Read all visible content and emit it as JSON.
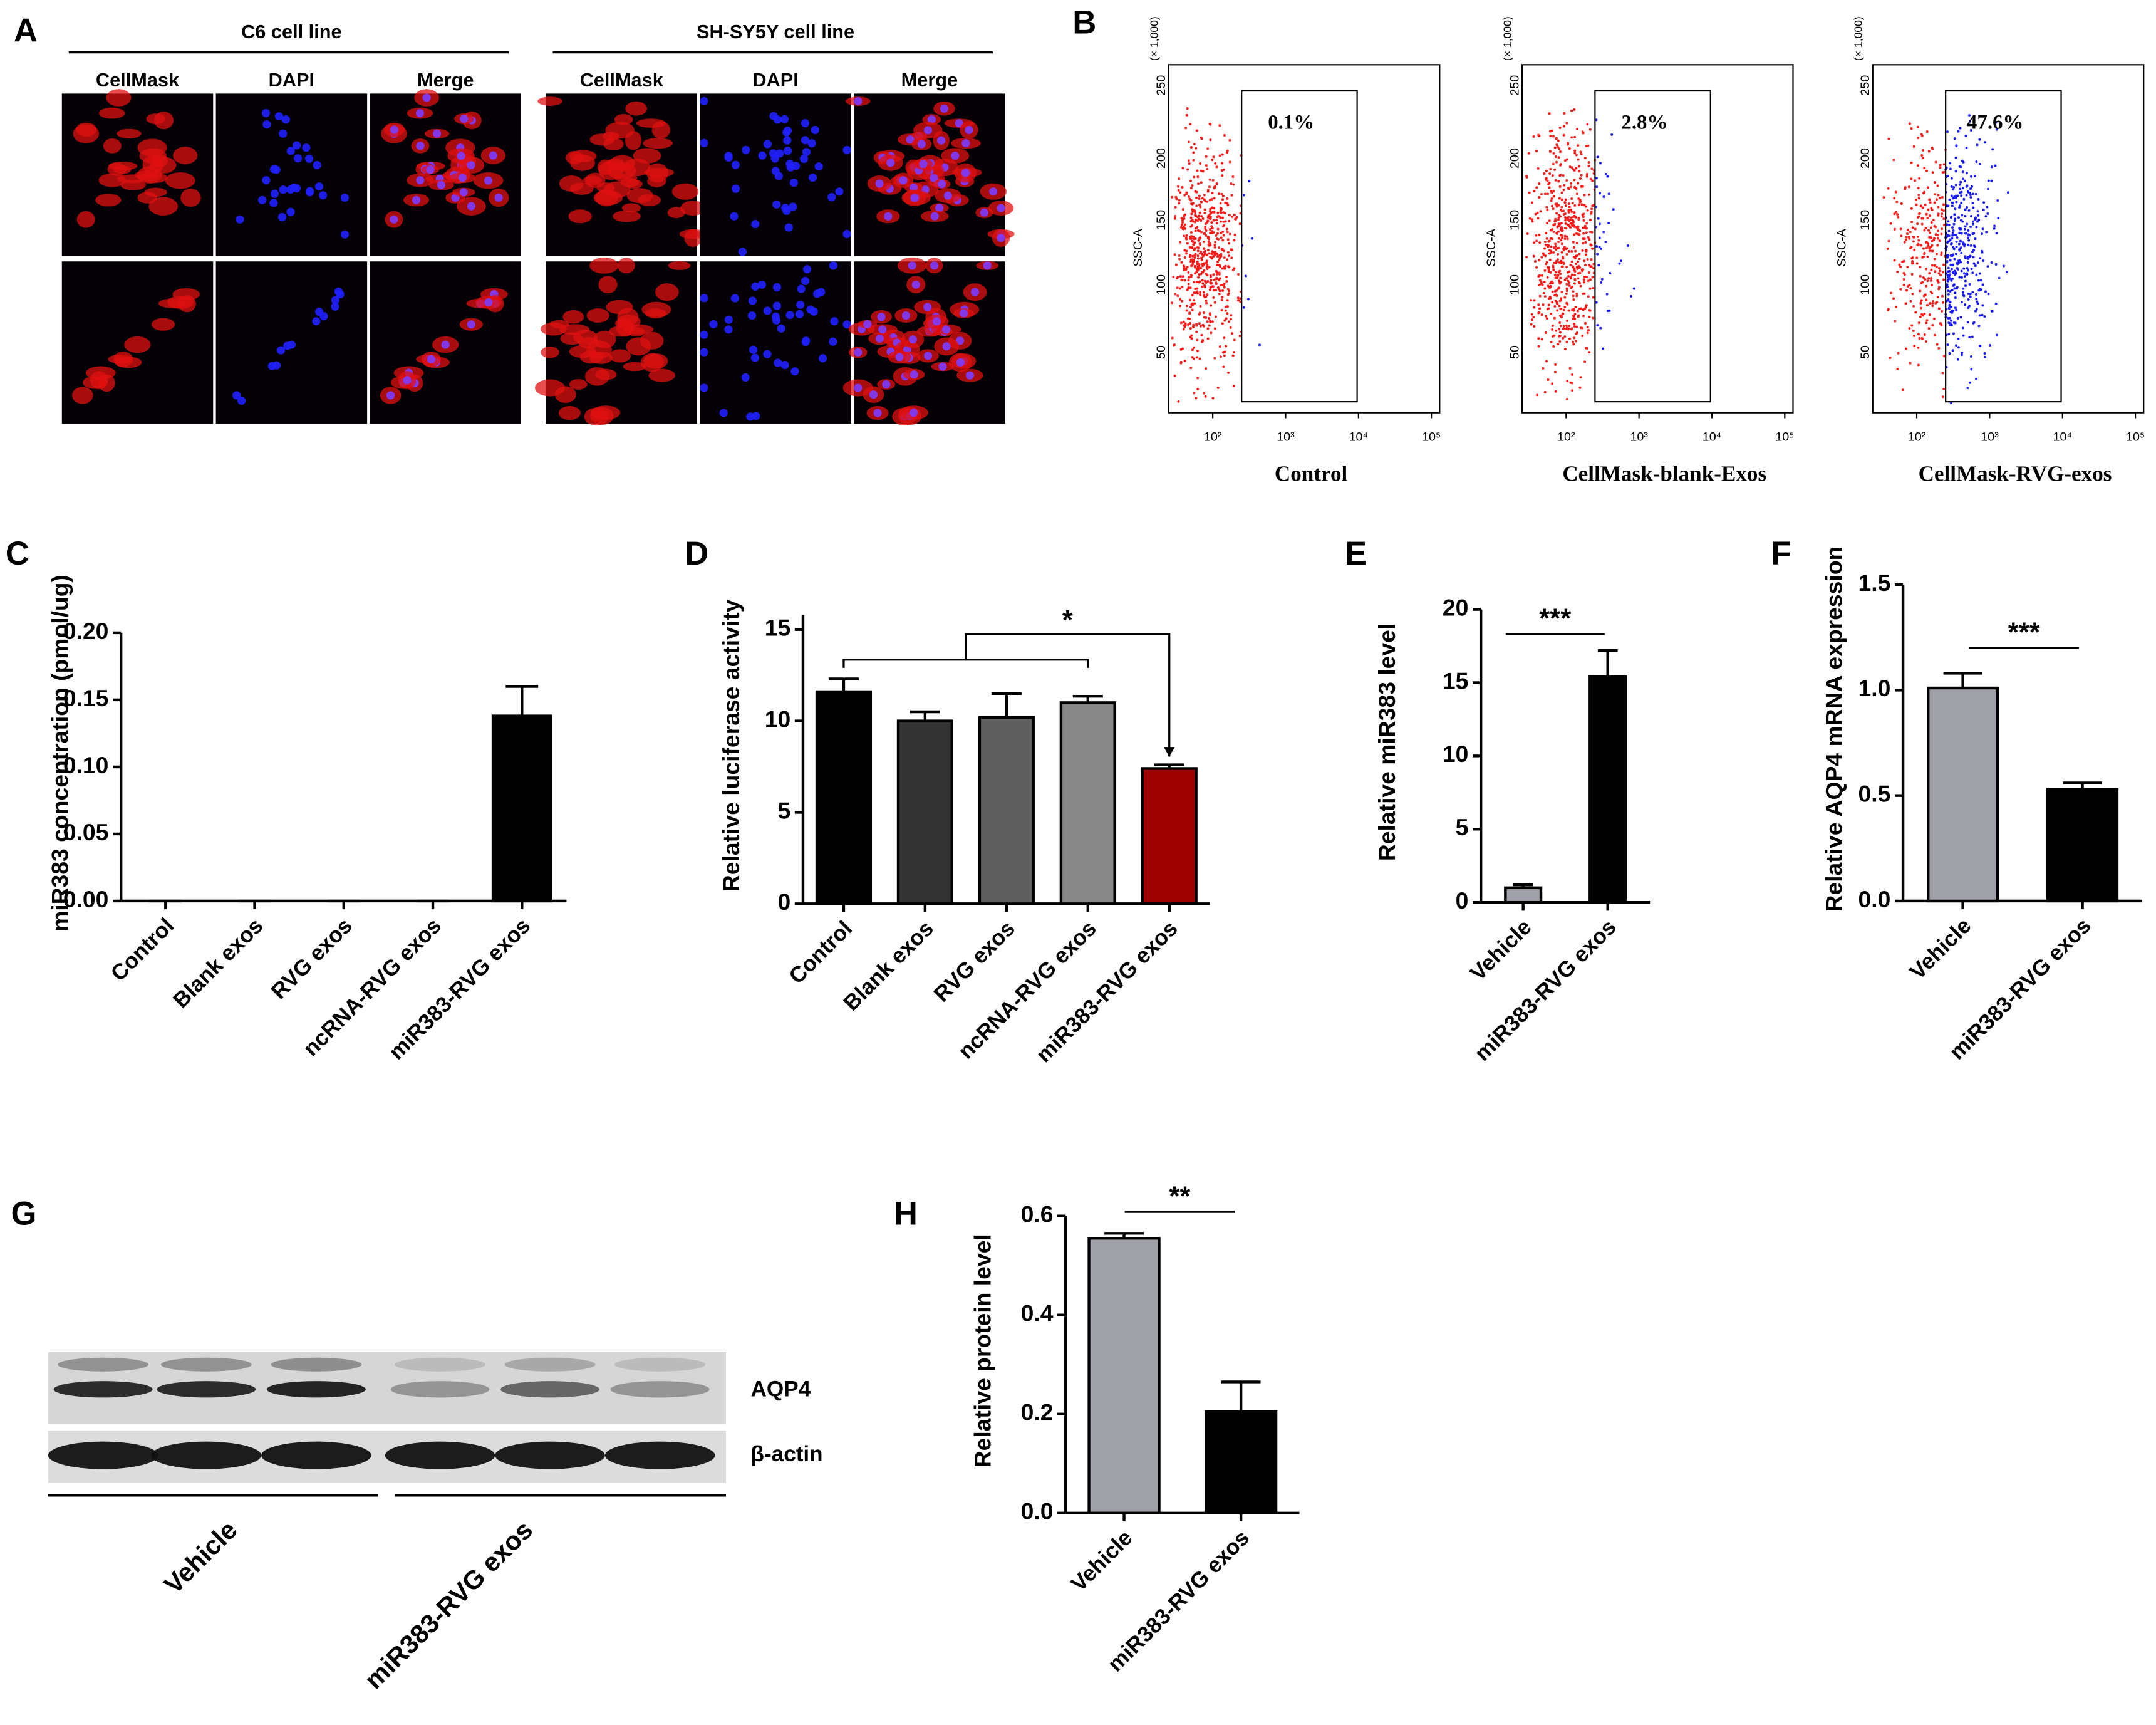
{
  "panel_labels": [
    "A",
    "B",
    "C",
    "D",
    "E",
    "F",
    "G",
    "H"
  ],
  "panel_a": {
    "groups": [
      {
        "title": "C6 cell line",
        "columns": [
          "CellMask",
          "DAPI",
          "Merge"
        ]
      },
      {
        "title": "SH-SY5Y cell line",
        "columns": [
          "CellMask",
          "DAPI",
          "Merge"
        ]
      }
    ]
  },
  "panel_b": {
    "y_axis": "SSC-A",
    "y_scale": "(× 1,000)",
    "yticks": [
      "50",
      "100",
      "150",
      "200",
      "250"
    ],
    "xticks": [
      "10²",
      "10³",
      "10⁴",
      "10⁵"
    ],
    "plots": [
      {
        "gate": "0.1%",
        "label": "Control"
      },
      {
        "gate": "2.8%",
        "label": "CellMask-blank-Exos"
      },
      {
        "gate": "47.6%",
        "label": "CellMask-RVG-exos"
      }
    ]
  },
  "panel_g": {
    "bands": [
      "AQP4",
      "β-actin"
    ],
    "groups": [
      "Vehicle",
      "miR383-RVG exos"
    ]
  },
  "chart_data": [
    {
      "type": "bar",
      "y_label": "miR383 concentration (pmol/ug)",
      "categories": [
        "Control",
        "Blank exos",
        "RVG exos",
        "ncRNA-RVG exos",
        "miR383-RVG exos"
      ],
      "values": [
        0,
        0,
        0,
        0,
        0.138
      ],
      "errors": [
        0,
        0,
        0,
        0,
        0.022
      ],
      "colors": [
        "#000000",
        "#000000",
        "#000000",
        "#000000",
        "#000000"
      ],
      "ylim": [
        0,
        0.2
      ],
      "yticks": [
        {
          "value": 0,
          "label": "0.00"
        },
        {
          "value": 0.05,
          "label": "0.05"
        },
        {
          "value": 0.1,
          "label": "0.10"
        },
        {
          "value": 0.15,
          "label": "0.15"
        },
        {
          "value": 0.2,
          "label": "0.20"
        }
      ]
    },
    {
      "type": "bar",
      "y_label": "Relative luciferase activity",
      "categories": [
        "Control",
        "Blank exos",
        "RVG exos",
        "ncRNA-RVG exos",
        "miR383-RVG exos"
      ],
      "values": [
        11.6,
        10.0,
        10.2,
        11.0,
        7.4
      ],
      "errors": [
        0.7,
        0.5,
        1.3,
        0.35,
        0.2
      ],
      "colors": [
        "#000000",
        "#333333",
        "#5f5f5f",
        "#888888",
        "#a00000"
      ],
      "ylim": [
        0,
        15.8
      ],
      "yticks": [
        0,
        5,
        10,
        15
      ],
      "annotation": "*"
    },
    {
      "type": "bar",
      "y_label": "Relative miR383  level",
      "categories": [
        "Vehicle",
        "miR383-RVG exos"
      ],
      "values": [
        1.0,
        15.4
      ],
      "errors": [
        0.2,
        1.8
      ],
      "colors": [
        "#a0a0a8",
        "#000000"
      ],
      "ylim": [
        0,
        20
      ],
      "yticks": [
        0,
        5,
        10,
        15,
        20
      ],
      "annotation": "***"
    },
    {
      "type": "bar",
      "y_label": "Relative AQP4 mRNA expression",
      "categories": [
        "Vehicle",
        "miR383-RVG exos"
      ],
      "values": [
        1.01,
        0.53
      ],
      "errors": [
        0.07,
        0.03
      ],
      "colors": [
        "#a0a0a8",
        "#000000"
      ],
      "ylim": [
        0,
        1.5
      ],
      "yticks": [
        {
          "value": 0,
          "label": "0.0"
        },
        {
          "value": 0.5,
          "label": "0.5"
        },
        {
          "value": 1,
          "label": "1.0"
        },
        {
          "value": 1.5,
          "label": "1.5"
        }
      ],
      "annotation": "***"
    },
    {
      "type": "bar",
      "y_label": "Relative protein level",
      "categories": [
        "Vehicle",
        "miR383-RVG exos"
      ],
      "values": [
        0.555,
        0.205
      ],
      "errors": [
        0.01,
        0.06
      ],
      "colors": [
        "#a0a0a8",
        "#000000"
      ],
      "ylim": [
        0,
        0.6
      ],
      "yticks": [
        {
          "value": 0,
          "label": "0.0"
        },
        {
          "value": 0.2,
          "label": "0.2"
        },
        {
          "value": 0.4,
          "label": "0.4"
        },
        {
          "value": 0.6,
          "label": "0.6"
        }
      ],
      "annotation": "**"
    }
  ]
}
